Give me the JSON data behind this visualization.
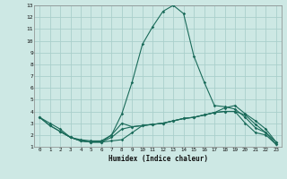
{
  "xlabel": "Humidex (Indice chaleur)",
  "background_color": "#cde8e4",
  "grid_color": "#aacfcb",
  "line_color": "#1a6b5a",
  "xlim": [
    -0.5,
    23.5
  ],
  "ylim": [
    1,
    13
  ],
  "xticks": [
    0,
    1,
    2,
    3,
    4,
    5,
    6,
    7,
    8,
    9,
    10,
    11,
    12,
    13,
    14,
    15,
    16,
    17,
    18,
    19,
    20,
    21,
    22,
    23
  ],
  "yticks": [
    1,
    2,
    3,
    4,
    5,
    6,
    7,
    8,
    9,
    10,
    11,
    12,
    13
  ],
  "lines": [
    {
      "x": [
        0,
        1,
        2,
        3,
        4,
        5,
        6,
        7,
        8,
        9,
        10,
        11,
        12,
        13,
        14,
        15,
        16,
        17,
        18,
        19,
        20,
        21,
        22,
        23
      ],
      "y": [
        3.5,
        3.0,
        2.5,
        1.8,
        1.6,
        1.5,
        1.5,
        2.0,
        3.8,
        6.5,
        9.7,
        11.2,
        12.5,
        13.0,
        12.3,
        8.7,
        6.5,
        4.5,
        4.4,
        4.2,
        3.5,
        2.6,
        2.2,
        1.4
      ]
    },
    {
      "x": [
        0,
        1,
        2,
        3,
        4,
        5,
        6,
        7,
        8,
        9,
        10,
        11,
        12,
        13,
        14,
        15,
        16,
        17,
        18,
        19,
        20,
        21,
        22,
        23
      ],
      "y": [
        3.5,
        2.8,
        2.3,
        1.8,
        1.5,
        1.4,
        1.4,
        1.8,
        2.5,
        2.7,
        2.8,
        2.9,
        3.0,
        3.2,
        3.4,
        3.5,
        3.7,
        3.9,
        4.3,
        4.5,
        3.8,
        3.2,
        2.5,
        1.4
      ]
    },
    {
      "x": [
        0,
        1,
        2,
        3,
        4,
        5,
        6,
        7,
        8,
        9,
        10,
        11,
        12,
        13,
        14,
        15,
        16,
        17,
        18,
        19,
        20,
        21,
        22,
        23
      ],
      "y": [
        3.5,
        2.8,
        2.3,
        1.8,
        1.5,
        1.4,
        1.4,
        2.0,
        3.0,
        2.7,
        2.8,
        2.9,
        3.0,
        3.2,
        3.4,
        3.5,
        3.7,
        3.9,
        4.0,
        4.0,
        3.0,
        2.2,
        2.0,
        1.2
      ]
    },
    {
      "x": [
        2,
        3,
        4,
        5,
        6,
        7,
        8,
        9,
        10,
        11,
        12,
        13,
        14,
        15,
        16,
        17,
        18,
        19,
        20,
        21,
        22,
        23
      ],
      "y": [
        2.3,
        1.8,
        1.5,
        1.4,
        1.4,
        1.5,
        1.6,
        2.2,
        2.8,
        2.9,
        3.0,
        3.2,
        3.4,
        3.5,
        3.7,
        3.9,
        4.0,
        4.0,
        3.7,
        2.9,
        2.2,
        1.2
      ]
    }
  ]
}
